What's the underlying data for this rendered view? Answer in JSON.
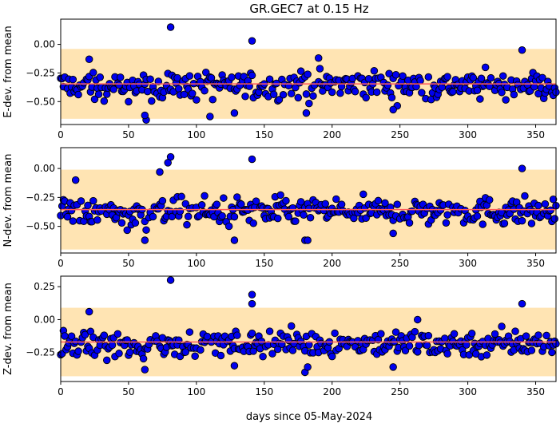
{
  "chart_data": {
    "type": "scatter",
    "title": "GR.GEC7 at 0.15 Hz",
    "xlabel": "days since 05-May-2024",
    "xlim": [
      0,
      365
    ],
    "xticks": [
      0,
      50,
      100,
      150,
      200,
      250,
      300,
      350
    ],
    "colors": {
      "band": "#ffe4b3",
      "marker": "#0000ee",
      "marker_edge": "#000000",
      "mean_line": "#ff5c5c"
    },
    "panels": [
      {
        "ylabel": "E-dev. from mean",
        "ylim": [
          -0.7,
          0.22
        ],
        "yticks": [
          0.0,
          -0.25,
          -0.5
        ],
        "ytick_labels": [
          "0.00",
          "−0.25",
          "−0.50"
        ],
        "band": [
          -0.65,
          -0.04
        ],
        "mean": -0.345,
        "baseline": -0.36,
        "spread": 0.06,
        "outliers": [
          [
            81,
            0.15
          ],
          [
            141,
            0.03
          ],
          [
            340,
            -0.05
          ],
          [
            63,
            -0.66
          ],
          [
            62,
            -0.62
          ],
          [
            110,
            -0.63
          ],
          [
            128,
            -0.6
          ],
          [
            181,
            -0.6
          ],
          [
            245,
            -0.57
          ],
          [
            190,
            -0.12
          ],
          [
            21,
            -0.13
          ]
        ]
      },
      {
        "ylabel": "N-dev. from mean",
        "ylim": [
          -0.73,
          0.18
        ],
        "yticks": [
          0.0,
          -0.25,
          -0.5
        ],
        "ytick_labels": [
          "0.00",
          "−0.25",
          "−0.50"
        ],
        "band": [
          -0.7,
          -0.01
        ],
        "mean": -0.355,
        "baseline": -0.37,
        "spread": 0.06,
        "outliers": [
          [
            81,
            0.1
          ],
          [
            79,
            0.05
          ],
          [
            141,
            0.08
          ],
          [
            340,
            0.0
          ],
          [
            62,
            -0.62
          ],
          [
            128,
            -0.62
          ],
          [
            180,
            -0.62
          ],
          [
            182,
            -0.62
          ],
          [
            245,
            -0.56
          ],
          [
            11,
            -0.1
          ],
          [
            73,
            -0.03
          ]
        ]
      },
      {
        "ylabel": "Z-dev. from mean",
        "ylim": [
          -0.47,
          0.33
        ],
        "yticks": [
          0.25,
          0.0,
          -0.25
        ],
        "ytick_labels": [
          "0.25",
          "0.00",
          "−0.25"
        ],
        "band": [
          -0.43,
          0.09
        ],
        "mean": -0.17,
        "baseline": -0.18,
        "spread": 0.05,
        "outliers": [
          [
            81,
            0.3
          ],
          [
            141,
            0.19
          ],
          [
            141,
            0.12
          ],
          [
            340,
            0.12
          ],
          [
            62,
            -0.38
          ],
          [
            180,
            -0.4
          ],
          [
            182,
            -0.36
          ],
          [
            128,
            -0.35
          ],
          [
            245,
            -0.36
          ],
          [
            21,
            0.06
          ],
          [
            263,
            0.0
          ]
        ]
      }
    ]
  }
}
